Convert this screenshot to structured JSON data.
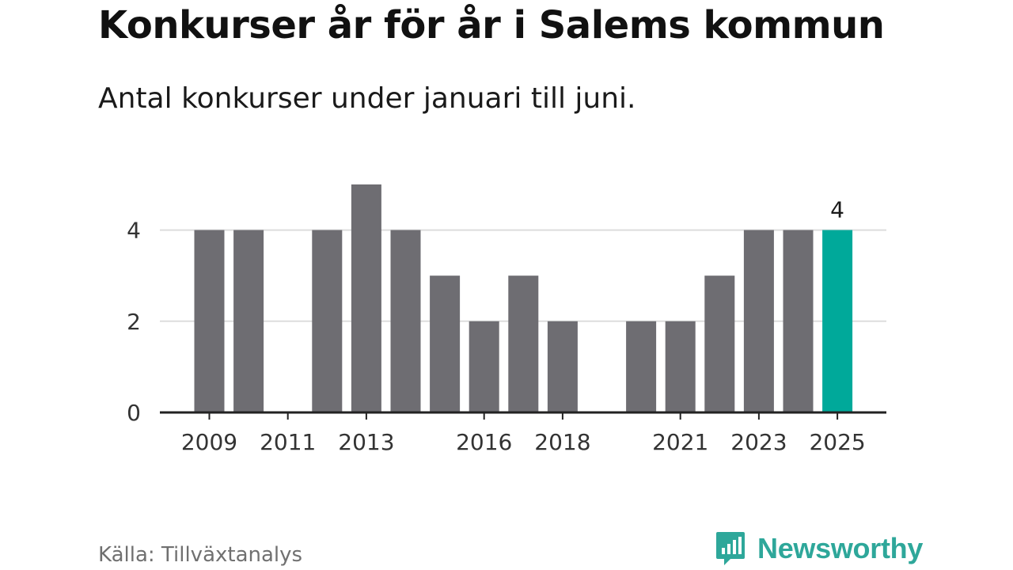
{
  "header": {
    "title": "Konkurser år för år i Salems kommun",
    "subtitle": "Antal konkurser under januari till juni."
  },
  "footer": {
    "source": "Källa: Tillväxtanalys",
    "brand": "Newsworthy"
  },
  "colors": {
    "bar": "#6e6d72",
    "highlight": "#00a99a",
    "grid": "#dddddd",
    "axis": "#222222",
    "brand": "#2ea79a"
  },
  "chart_data": {
    "type": "bar",
    "categories": [
      "2009",
      "2010",
      "2011",
      "2012",
      "2013",
      "2014",
      "2015",
      "2016",
      "2017",
      "2018",
      "2019",
      "2020",
      "2021",
      "2022",
      "2023",
      "2024",
      "2025"
    ],
    "values": [
      4,
      4,
      0,
      4,
      5,
      4,
      3,
      2,
      3,
      2,
      0,
      2,
      2,
      3,
      4,
      4,
      4
    ],
    "x_tick_labels": [
      "2009",
      "2011",
      "2013",
      "2016",
      "2018",
      "2021",
      "2023",
      "2025"
    ],
    "y_ticks": [
      0,
      2,
      4
    ],
    "ylim": [
      0,
      5
    ],
    "highlight_category": "2025",
    "annotations": [
      {
        "category": "2025",
        "text": "4"
      }
    ],
    "grid": true,
    "title": "Konkurser år för år i Salems kommun",
    "subtitle": "Antal konkurser under januari till juni.",
    "xlabel": "",
    "ylabel": ""
  }
}
